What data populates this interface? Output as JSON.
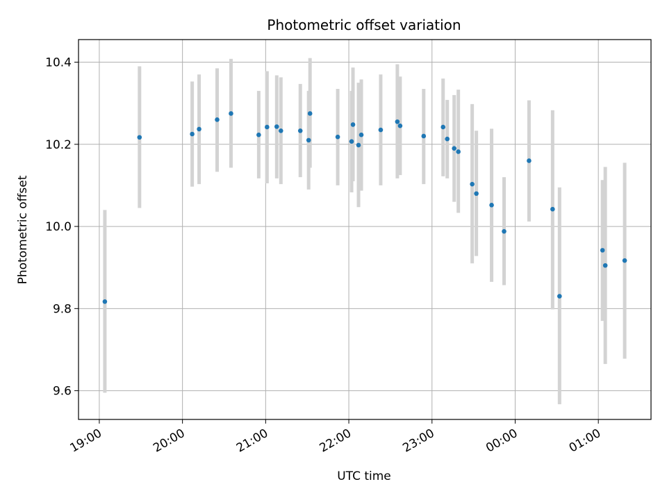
{
  "chart_data": {
    "type": "scatter",
    "title": "Photometric offset variation",
    "xlabel": "UTC time",
    "ylabel": "Photometric offset",
    "x_ticks": [
      "19:00",
      "20:00",
      "21:00",
      "22:00",
      "23:00",
      "00:00",
      "01:00"
    ],
    "y_ticks": [
      "9.6",
      "9.8",
      "10.0",
      "10.2",
      "10.4"
    ],
    "xlim": [
      "18:45",
      "01:38"
    ],
    "ylim": [
      9.53,
      10.455
    ],
    "grid": true,
    "point_color": "#1f77b4",
    "errorbar_color": "#d3d3d3",
    "series": [
      {
        "points": [
          {
            "t": "19:04",
            "y": 9.817,
            "lo": 9.595,
            "hi": 10.04
          },
          {
            "t": "19:29",
            "y": 10.217,
            "lo": 10.045,
            "hi": 10.39
          },
          {
            "t": "20:07",
            "y": 10.225,
            "lo": 10.097,
            "hi": 10.353
          },
          {
            "t": "20:12",
            "y": 10.237,
            "lo": 10.103,
            "hi": 10.37
          },
          {
            "t": "20:25",
            "y": 10.26,
            "lo": 10.133,
            "hi": 10.385
          },
          {
            "t": "20:35",
            "y": 10.275,
            "lo": 10.143,
            "hi": 10.408
          },
          {
            "t": "20:55",
            "y": 10.223,
            "lo": 10.117,
            "hi": 10.33
          },
          {
            "t": "21:01",
            "y": 10.242,
            "lo": 10.105,
            "hi": 10.378
          },
          {
            "t": "21:08",
            "y": 10.243,
            "lo": 10.117,
            "hi": 10.368
          },
          {
            "t": "21:11",
            "y": 10.233,
            "lo": 10.103,
            "hi": 10.363
          },
          {
            "t": "21:25",
            "y": 10.233,
            "lo": 10.12,
            "hi": 10.347
          },
          {
            "t": "21:31",
            "y": 10.21,
            "lo": 10.09,
            "hi": 10.33
          },
          {
            "t": "21:32",
            "y": 10.275,
            "lo": 10.143,
            "hi": 10.41
          },
          {
            "t": "21:52",
            "y": 10.218,
            "lo": 10.1,
            "hi": 10.335
          },
          {
            "t": "22:02",
            "y": 10.207,
            "lo": 10.083,
            "hi": 10.33
          },
          {
            "t": "22:03",
            "y": 10.248,
            "lo": 10.11,
            "hi": 10.387
          },
          {
            "t": "22:07",
            "y": 10.198,
            "lo": 10.047,
            "hi": 10.35
          },
          {
            "t": "22:09",
            "y": 10.223,
            "lo": 10.087,
            "hi": 10.358
          },
          {
            "t": "22:23",
            "y": 10.235,
            "lo": 10.1,
            "hi": 10.37
          },
          {
            "t": "22:35",
            "y": 10.255,
            "lo": 10.117,
            "hi": 10.395
          },
          {
            "t": "22:37",
            "y": 10.245,
            "lo": 10.125,
            "hi": 10.365
          },
          {
            "t": "22:54",
            "y": 10.22,
            "lo": 10.103,
            "hi": 10.335
          },
          {
            "t": "23:08",
            "y": 10.242,
            "lo": 10.122,
            "hi": 10.36
          },
          {
            "t": "23:11",
            "y": 10.213,
            "lo": 10.117,
            "hi": 10.308
          },
          {
            "t": "23:16",
            "y": 10.19,
            "lo": 10.06,
            "hi": 10.32
          },
          {
            "t": "23:19",
            "y": 10.182,
            "lo": 10.033,
            "hi": 10.333
          },
          {
            "t": "23:29",
            "y": 10.103,
            "lo": 9.91,
            "hi": 10.298
          },
          {
            "t": "23:32",
            "y": 10.08,
            "lo": 9.928,
            "hi": 10.233
          },
          {
            "t": "23:43",
            "y": 10.052,
            "lo": 9.865,
            "hi": 10.238
          },
          {
            "t": "23:52",
            "y": 9.988,
            "lo": 9.857,
            "hi": 10.12
          },
          {
            "t": "00:10",
            "y": 10.16,
            "lo": 10.012,
            "hi": 10.307
          },
          {
            "t": "00:27",
            "y": 10.042,
            "lo": 9.798,
            "hi": 10.283
          },
          {
            "t": "00:32",
            "y": 9.83,
            "lo": 9.567,
            "hi": 10.095
          },
          {
            "t": "01:03",
            "y": 9.942,
            "lo": 9.77,
            "hi": 10.113
          },
          {
            "t": "01:05",
            "y": 9.905,
            "lo": 9.665,
            "hi": 10.145
          },
          {
            "t": "01:19",
            "y": 9.917,
            "lo": 9.678,
            "hi": 10.155
          }
        ]
      }
    ]
  }
}
